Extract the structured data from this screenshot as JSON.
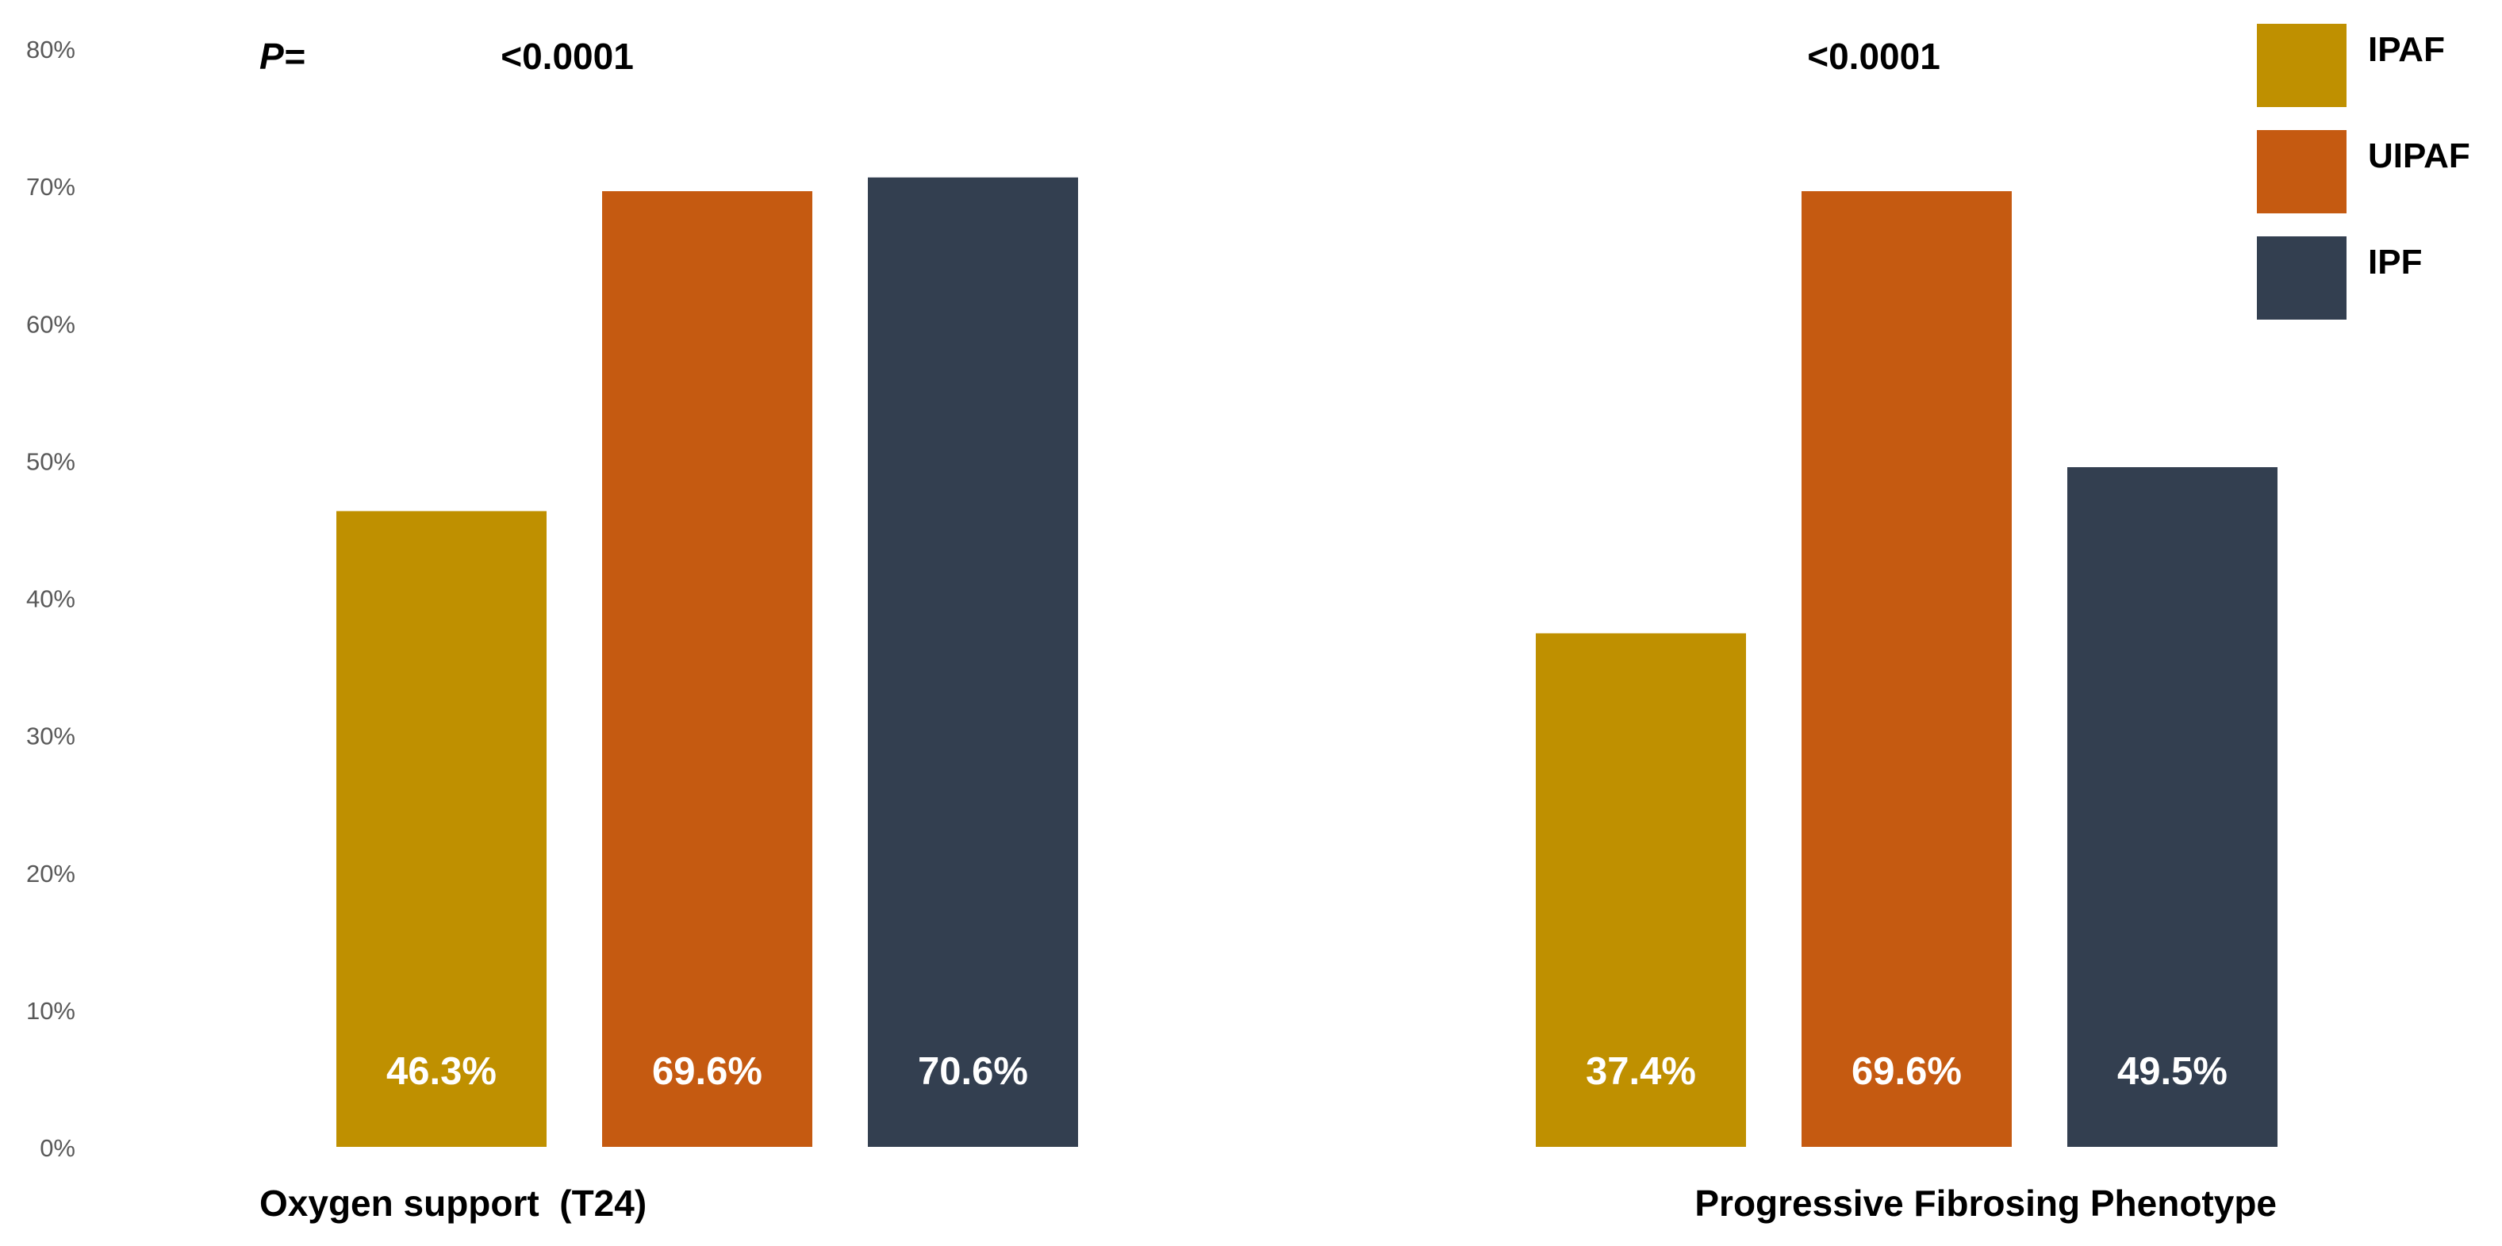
{
  "chart_data": {
    "type": "bar",
    "categories": [
      "Oxygen support  (T24)",
      "Progressive Fibrosing Phenotype"
    ],
    "series": [
      {
        "name": "IPAF",
        "color": "#BF9000",
        "values": [
          46.3,
          37.4
        ],
        "labels": [
          "46.3%",
          "37.4%"
        ]
      },
      {
        "name": "UIPAF",
        "color": "#C55A11",
        "values": [
          69.6,
          69.6
        ],
        "labels": [
          "69.6%",
          "69.6%"
        ]
      },
      {
        "name": "IPF",
        "color": "#333F50",
        "values": [
          70.6,
          49.5
        ],
        "labels": [
          "70.6%",
          "49.5%"
        ]
      }
    ],
    "ylim": [
      0,
      80
    ],
    "yticks": [
      0,
      10,
      20,
      30,
      40,
      50,
      60,
      70,
      80
    ],
    "ytick_labels": [
      "0%",
      "10%",
      "20%",
      "30%",
      "40%",
      "50%",
      "60%",
      "70%",
      "80%"
    ],
    "grid": false,
    "legend_position": "top-right",
    "annotations": {
      "p_label": "P=",
      "p_values": [
        "<0.0001",
        "<0.0001"
      ]
    },
    "title": "",
    "xlabel": "",
    "ylabel": ""
  }
}
